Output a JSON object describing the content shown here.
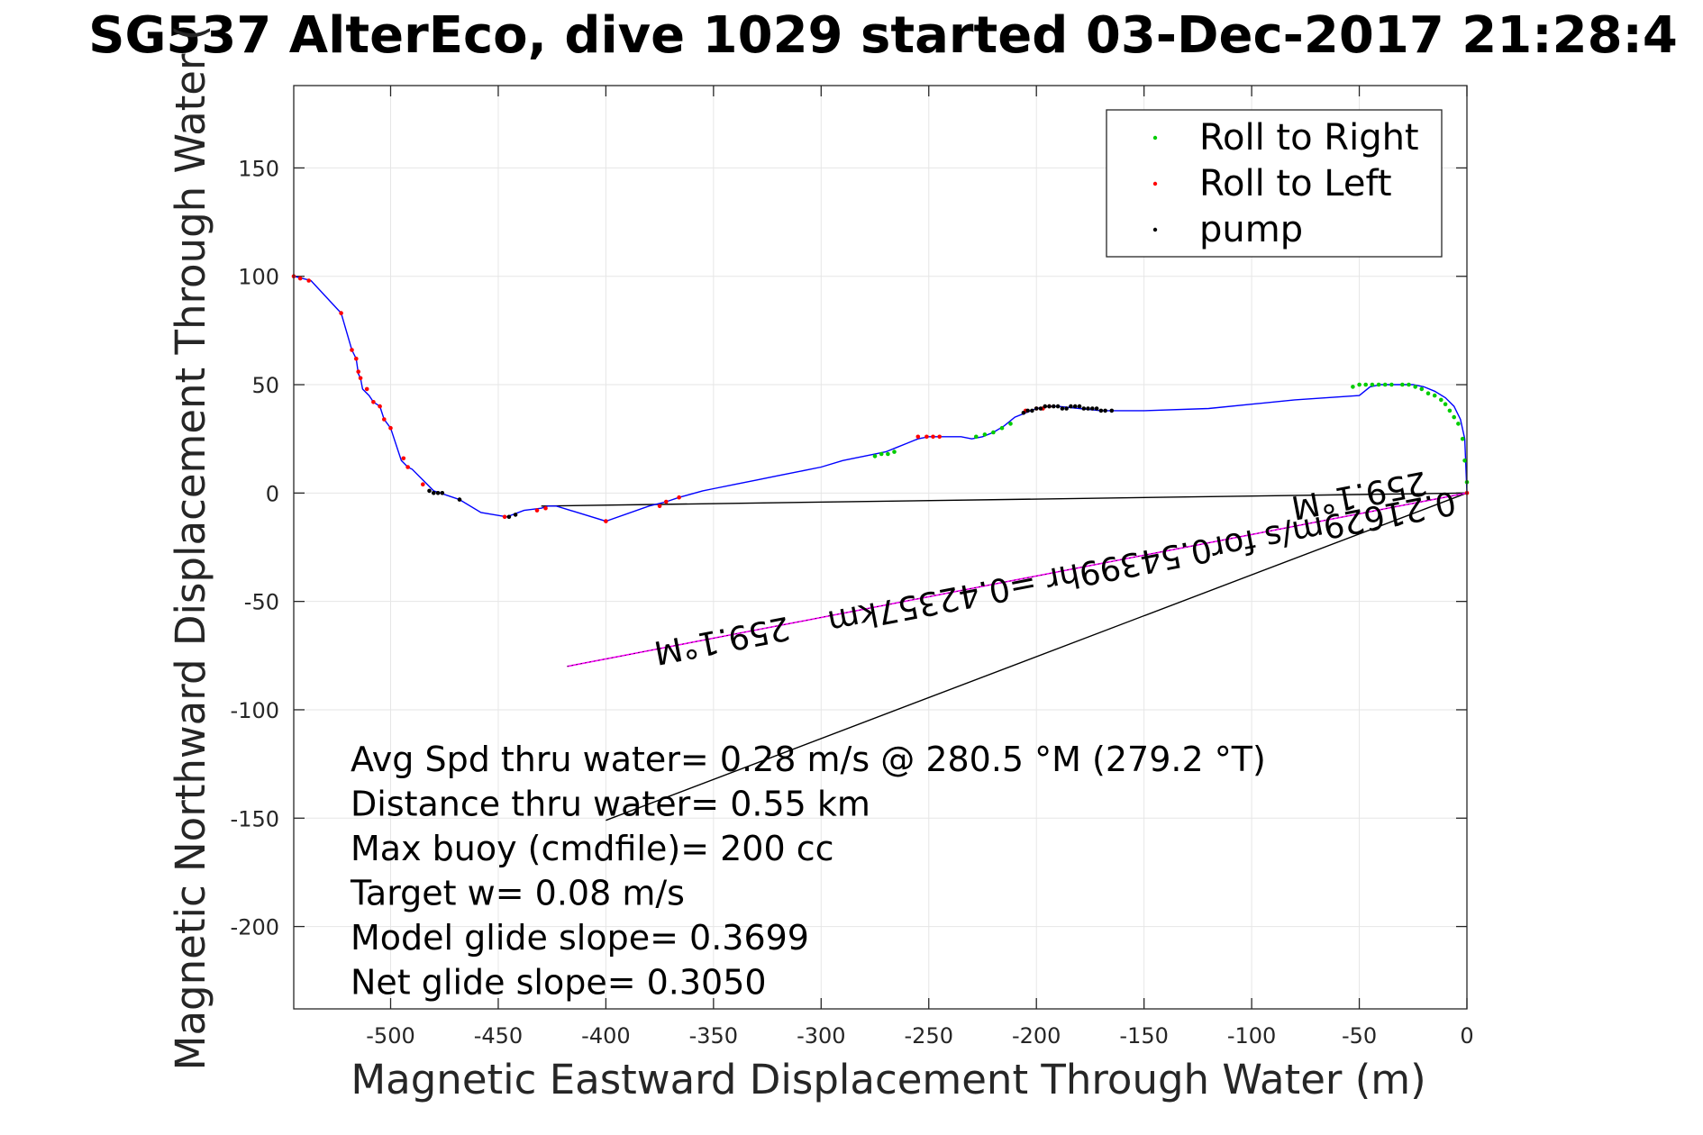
{
  "chart_data": {
    "type": "line",
    "title": "SG537 AlterEco, dive 1029 started 03-Dec-2017 21:28:4",
    "xlabel": "Magnetic Eastward Displacement Through Water (m)",
    "ylabel": "Magnetic Northward Displacement Through Water (",
    "xlim": [
      -545,
      0
    ],
    "ylim": [
      -238,
      188
    ],
    "xticks": [
      "-500",
      "-450",
      "-400",
      "-350",
      "-300",
      "-250",
      "-200",
      "-150",
      "-100",
      "-50",
      "0"
    ],
    "yticks": [
      "150",
      "100",
      "50",
      "0",
      "-50",
      "-100",
      "-150",
      "-200"
    ],
    "grid": true,
    "legend_position": "top-right",
    "legend": [
      "Roll to Right",
      "Roll to Left",
      "pump"
    ],
    "colors": {
      "track": "#0000ff",
      "roll_right": "#00cc00",
      "roll_left": "#ff0000",
      "pump": "#000000",
      "vector": "#000000",
      "current": "#ff00ff"
    },
    "track": {
      "x": [
        -545,
        -541,
        -537,
        -523,
        -518,
        -516,
        -515,
        -514,
        -513,
        -510,
        -508,
        -505,
        -503,
        -500,
        -495,
        -492,
        -490,
        -484,
        -480,
        -477,
        -468,
        -458,
        -446,
        -438,
        -430,
        -427,
        -423,
        -400,
        -380,
        -372,
        -366,
        -355,
        -350,
        -340,
        -330,
        -320,
        -310,
        -300,
        -290,
        -280,
        -270,
        -265,
        -260,
        -255,
        -250,
        -245,
        -240,
        -235,
        -230,
        -225,
        -220,
        -215,
        -210,
        -205,
        -200,
        -195,
        -190,
        -180,
        -170,
        -150,
        -120,
        -100,
        -80,
        -50,
        -45,
        -40,
        -30,
        -25,
        -20,
        -15,
        -10,
        -6,
        -3,
        -1,
        0
      ],
      "y": [
        100,
        99,
        98,
        83,
        66,
        62,
        55,
        53,
        48,
        45,
        42,
        40,
        34,
        30,
        15,
        12,
        11,
        5,
        1,
        0,
        -3,
        -9,
        -11,
        -8,
        -7,
        -6,
        -6,
        -13,
        -6,
        -4,
        -2,
        1,
        2,
        4,
        6,
        8,
        10,
        12,
        15,
        17,
        19,
        21,
        23,
        25,
        26,
        26,
        26,
        26,
        25,
        26,
        28,
        31,
        35,
        37,
        39,
        40,
        40,
        39,
        38,
        38,
        39,
        41,
        43,
        45,
        49,
        50,
        50,
        50,
        49,
        47,
        44,
        40,
        34,
        25,
        0
      ]
    },
    "roll_right": {
      "x": [
        -275,
        -272,
        -269,
        -266,
        -228,
        -224,
        -220,
        -216,
        -212,
        -53,
        -50,
        -47,
        -44,
        -41,
        -38,
        -35,
        -30,
        -27,
        -24,
        -21,
        -18,
        -15,
        -12,
        -10,
        -8,
        -6,
        -4,
        -2,
        -1,
        0
      ],
      "y": [
        17,
        18,
        18,
        19,
        26,
        27,
        28,
        30,
        32,
        49,
        50,
        50,
        50,
        50,
        50,
        50,
        50,
        50,
        49,
        48,
        46,
        45,
        43,
        41,
        38,
        35,
        32,
        25,
        15,
        5
      ]
    },
    "roll_left": {
      "x": [
        -545,
        -542,
        -538,
        -523,
        -518,
        -516,
        -515,
        -514,
        -511,
        -508,
        -505,
        -503,
        -500,
        -494,
        -492,
        -485,
        -447,
        -432,
        -428,
        -400,
        -375,
        -372,
        -366,
        -255,
        -251,
        -248,
        -245,
        -205,
        -200,
        -197,
        -194,
        0
      ],
      "y": [
        100,
        99,
        98,
        83,
        66,
        62,
        56,
        53,
        48,
        42,
        40,
        34,
        30,
        16,
        12,
        4,
        -11,
        -8,
        -7,
        -13,
        -6,
        -4,
        -2,
        26,
        26,
        26,
        26,
        38,
        39,
        39,
        40,
        0
      ]
    },
    "pump": {
      "x": [
        -482,
        -480,
        -478,
        -476,
        -468,
        -445,
        -442,
        -206,
        -204,
        -202,
        -200,
        -198,
        -196,
        -194,
        -192,
        -190,
        -188,
        -186,
        -184,
        -182,
        -180,
        -178,
        -176,
        -174,
        -172,
        -170,
        -168,
        -165
      ],
      "y": [
        1,
        0,
        0,
        0,
        -3,
        -11,
        -10,
        37,
        38,
        38,
        39,
        39,
        40,
        40,
        40,
        40,
        39,
        39,
        40,
        40,
        40,
        39,
        39,
        39,
        39,
        38,
        38,
        38
      ]
    },
    "vectors": [
      {
        "x": [
          0,
          -430
        ],
        "y": [
          0,
          -6
        ]
      },
      {
        "x": [
          0,
          -400
        ],
        "y": [
          0,
          -151
        ]
      }
    ],
    "current_line": {
      "x": [
        0,
        -418
      ],
      "y": [
        0,
        -80
      ]
    },
    "annotations": [
      {
        "text": "0.21629m/s for0.54399hr =0.42357km",
        "x": -152,
        "y": -27
      },
      {
        "text": "259.1°M",
        "x": -51,
        "y": 4
      },
      {
        "text": "259.1°M",
        "x": -347,
        "y": -63
      }
    ],
    "info_lines": [
      "Avg Spd thru water=  0.28 m/s @ 280.5 °M (279.2 °T)",
      "Distance thru water=  0.55 km",
      "Max buoy (cmdfile)= 200 cc",
      "Target w= 0.08 m/s",
      "Model glide slope= 0.3699",
      "Net glide slope= 0.3050"
    ]
  }
}
